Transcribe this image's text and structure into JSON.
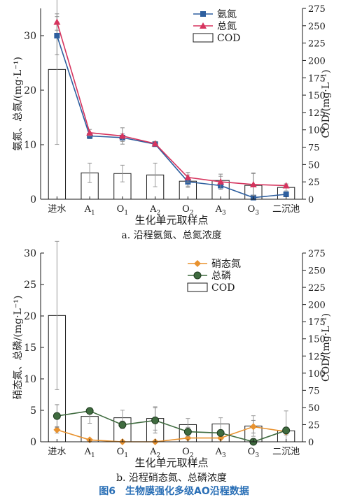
{
  "figure_caption": "图6　生物膜强化多级AO沿程数据",
  "chart_data": [
    {
      "type": "bar",
      "subcaption": "a. 沿程氨氮、总氮浓度",
      "xlabel": "生化单元取样点",
      "ylabel": "氨氮、总氮/(mg·L⁻¹)",
      "y2label": "COD/(mg·L⁻¹)",
      "categories": [
        {
          "base": "进水",
          "sub": ""
        },
        {
          "base": "A",
          "sub": "1"
        },
        {
          "base": "O",
          "sub": "1"
        },
        {
          "base": "A",
          "sub": "2"
        },
        {
          "base": "O",
          "sub": "2"
        },
        {
          "base": "A",
          "sub": "3"
        },
        {
          "base": "O",
          "sub": "3"
        },
        {
          "base": "二沉池",
          "sub": ""
        }
      ],
      "ylim": [
        0,
        35
      ],
      "yticks": [
        0,
        10,
        20,
        30
      ],
      "y2lim": [
        0,
        275
      ],
      "y2ticks": [
        0,
        25,
        50,
        75,
        100,
        125,
        150,
        175,
        200,
        225,
        250,
        275
      ],
      "legend": "top-center",
      "series": [
        {
          "name": "氨氮",
          "kind": "line",
          "axis": "left",
          "marker": "square",
          "color": "#2e5f9f",
          "values": [
            30.0,
            11.6,
            11.3,
            10.1,
            3.2,
            2.5,
            0.3,
            0.9
          ],
          "errors": [
            3.5,
            0.5,
            0.7,
            0.4,
            0.8,
            0.7,
            0.3,
            0.3
          ]
        },
        {
          "name": "总氮",
          "kind": "line",
          "axis": "left",
          "marker": "triangle",
          "color": "#d6345e",
          "values": [
            32.5,
            12.2,
            11.6,
            10.2,
            4.0,
            3.2,
            2.7,
            2.5
          ],
          "errors": [
            1.5,
            0.6,
            1.5,
            0.4,
            0.9,
            1.4,
            2.0,
            0.3
          ]
        },
        {
          "name": "COD",
          "kind": "bar",
          "axis": "right",
          "values": [
            187,
            38,
            37,
            35,
            26,
            27,
            20,
            17
          ],
          "errors": [
            108,
            14,
            12,
            17,
            9,
            6,
            18,
            5
          ]
        }
      ]
    },
    {
      "type": "bar",
      "subcaption": "b. 沿程硝态氮、总磷浓度",
      "xlabel": "生化单元取样点",
      "ylabel": "硝态氮、总磷/(mg·L⁻¹)",
      "y2label": "COD/(mg·L⁻¹)",
      "categories": [
        {
          "base": "进水",
          "sub": ""
        },
        {
          "base": "A",
          "sub": "1"
        },
        {
          "base": "O",
          "sub": "1"
        },
        {
          "base": "A",
          "sub": "2"
        },
        {
          "base": "O",
          "sub": "2"
        },
        {
          "base": "A",
          "sub": "3"
        },
        {
          "base": "O",
          "sub": "3"
        },
        {
          "base": "二沉池",
          "sub": ""
        }
      ],
      "ylim": [
        0,
        30
      ],
      "yticks": [
        0,
        5,
        10,
        15,
        20,
        25,
        30
      ],
      "y2lim": [
        0,
        275
      ],
      "y2ticks": [
        0,
        25,
        50,
        75,
        100,
        125,
        150,
        175,
        200,
        225,
        250,
        275
      ],
      "legend": "top-right",
      "series": [
        {
          "name": "硝态氮",
          "kind": "line",
          "axis": "left",
          "marker": "diamond",
          "color": "#e8922f",
          "values": [
            1.9,
            0.3,
            0.0,
            0.0,
            0.6,
            0.6,
            2.4,
            1.6
          ],
          "errors": [
            0.5,
            0.2,
            0.1,
            0.1,
            0.2,
            0.2,
            1.0,
            0.5
          ]
        },
        {
          "name": "总磷",
          "kind": "line",
          "axis": "left",
          "marker": "circle",
          "color": "#3f6b3f",
          "values": [
            4.1,
            4.9,
            2.7,
            3.4,
            1.6,
            1.4,
            0.0,
            1.8
          ],
          "errors": [
            1.8,
            0.4,
            0.6,
            2.0,
            0.7,
            0.5,
            0.2,
            0.3
          ]
        },
        {
          "name": "COD",
          "kind": "bar",
          "axis": "right",
          "values": [
            184,
            37,
            35,
            34,
            25,
            26,
            23,
            16
          ],
          "errors": [
            108,
            10,
            11,
            17,
            9,
            9,
            15,
            29
          ]
        }
      ]
    }
  ]
}
